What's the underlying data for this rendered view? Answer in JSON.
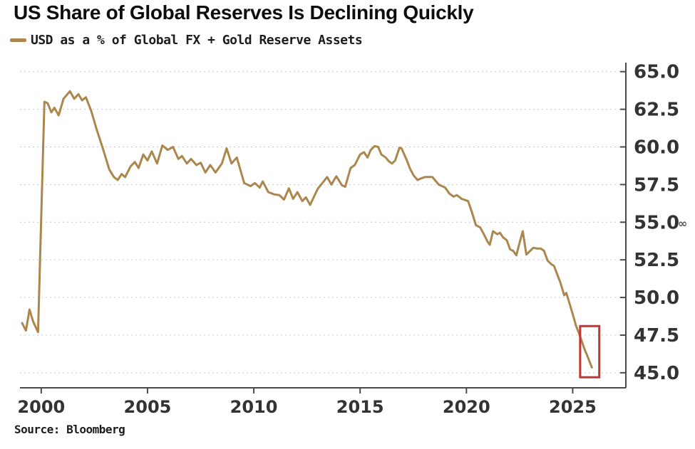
{
  "title": "US Share of Global Reserves Is Declining Quickly",
  "legend": {
    "label": "USD as a % of Global FX + Gold Reserve Assets"
  },
  "source": "Source: Bloomberg",
  "chart_data": {
    "type": "line",
    "title": "US Share of Global Reserves Is Declining Quickly",
    "xlabel": "",
    "ylabel": "",
    "xlim": [
      1999.0,
      2027.5
    ],
    "ylim": [
      44.0,
      65.6
    ],
    "x_ticks": [
      2000,
      2005,
      2010,
      2015,
      2020,
      2025
    ],
    "y_ticks": [
      65.0,
      62.5,
      60.0,
      57.5,
      55.0,
      52.5,
      50.0,
      47.5,
      45.0
    ],
    "grid": true,
    "legend_position": "top-left",
    "series": [
      {
        "name": "USD as a % of Global FX + Gold Reserve Assets",
        "points": [
          [
            1999.1,
            48.3
          ],
          [
            1999.28,
            47.8
          ],
          [
            1999.45,
            49.2
          ],
          [
            1999.62,
            48.4
          ],
          [
            1999.85,
            47.7
          ],
          [
            2000.15,
            63.0
          ],
          [
            2000.3,
            62.9
          ],
          [
            2000.48,
            62.3
          ],
          [
            2000.62,
            62.6
          ],
          [
            2000.82,
            62.1
          ],
          [
            2001.05,
            63.2
          ],
          [
            2001.35,
            63.7
          ],
          [
            2001.55,
            63.2
          ],
          [
            2001.75,
            63.5
          ],
          [
            2001.92,
            63.1
          ],
          [
            2002.1,
            63.3
          ],
          [
            2002.35,
            62.4
          ],
          [
            2002.62,
            61.1
          ],
          [
            2002.9,
            59.9
          ],
          [
            2003.2,
            58.5
          ],
          [
            2003.42,
            58.0
          ],
          [
            2003.6,
            57.8
          ],
          [
            2003.78,
            58.2
          ],
          [
            2003.95,
            58.0
          ],
          [
            2004.2,
            58.7
          ],
          [
            2004.4,
            59.0
          ],
          [
            2004.58,
            58.6
          ],
          [
            2004.8,
            59.5
          ],
          [
            2005.0,
            59.1
          ],
          [
            2005.2,
            59.7
          ],
          [
            2005.45,
            58.9
          ],
          [
            2005.7,
            60.1
          ],
          [
            2005.95,
            59.8
          ],
          [
            2006.2,
            60.0
          ],
          [
            2006.45,
            59.2
          ],
          [
            2006.62,
            59.4
          ],
          [
            2006.85,
            58.9
          ],
          [
            2007.05,
            59.2
          ],
          [
            2007.3,
            58.8
          ],
          [
            2007.5,
            58.95
          ],
          [
            2007.72,
            58.3
          ],
          [
            2007.95,
            58.8
          ],
          [
            2008.2,
            58.3
          ],
          [
            2008.5,
            58.9
          ],
          [
            2008.72,
            59.9
          ],
          [
            2008.95,
            58.9
          ],
          [
            2009.2,
            59.3
          ],
          [
            2009.55,
            57.6
          ],
          [
            2009.85,
            57.4
          ],
          [
            2010.05,
            57.6
          ],
          [
            2010.28,
            57.3
          ],
          [
            2010.42,
            57.7
          ],
          [
            2010.68,
            57.0
          ],
          [
            2010.95,
            56.85
          ],
          [
            2011.2,
            56.8
          ],
          [
            2011.42,
            56.5
          ],
          [
            2011.65,
            57.25
          ],
          [
            2011.85,
            56.55
          ],
          [
            2012.05,
            57.0
          ],
          [
            2012.28,
            56.4
          ],
          [
            2012.45,
            56.65
          ],
          [
            2012.65,
            56.15
          ],
          [
            2013.0,
            57.2
          ],
          [
            2013.45,
            58.0
          ],
          [
            2013.65,
            57.5
          ],
          [
            2013.88,
            58.05
          ],
          [
            2014.15,
            57.45
          ],
          [
            2014.3,
            57.35
          ],
          [
            2014.55,
            58.6
          ],
          [
            2014.75,
            58.8
          ],
          [
            2015.0,
            59.5
          ],
          [
            2015.18,
            59.65
          ],
          [
            2015.35,
            59.3
          ],
          [
            2015.5,
            59.8
          ],
          [
            2015.68,
            60.05
          ],
          [
            2015.85,
            60.0
          ],
          [
            2016.0,
            59.5
          ],
          [
            2016.2,
            59.3
          ],
          [
            2016.35,
            59.05
          ],
          [
            2016.5,
            58.9
          ],
          [
            2016.65,
            59.1
          ],
          [
            2016.85,
            59.95
          ],
          [
            2016.95,
            59.9
          ],
          [
            2017.2,
            59.1
          ],
          [
            2017.35,
            58.55
          ],
          [
            2017.52,
            58.1
          ],
          [
            2017.7,
            57.8
          ],
          [
            2017.85,
            57.9
          ],
          [
            2018.05,
            58.0
          ],
          [
            2018.4,
            58.0
          ],
          [
            2018.7,
            57.5
          ],
          [
            2019.0,
            57.3
          ],
          [
            2019.2,
            56.9
          ],
          [
            2019.4,
            56.7
          ],
          [
            2019.55,
            56.8
          ],
          [
            2019.78,
            56.55
          ],
          [
            2020.08,
            56.4
          ],
          [
            2020.25,
            55.7
          ],
          [
            2020.45,
            54.8
          ],
          [
            2020.65,
            54.65
          ],
          [
            2020.82,
            54.2
          ],
          [
            2021.0,
            53.7
          ],
          [
            2021.1,
            53.5
          ],
          [
            2021.25,
            54.4
          ],
          [
            2021.45,
            54.2
          ],
          [
            2021.58,
            54.3
          ],
          [
            2021.72,
            54.0
          ],
          [
            2021.9,
            53.8
          ],
          [
            2022.05,
            53.2
          ],
          [
            2022.2,
            53.1
          ],
          [
            2022.35,
            52.8
          ],
          [
            2022.55,
            53.9
          ],
          [
            2022.65,
            54.4
          ],
          [
            2022.82,
            52.85
          ],
          [
            2023.0,
            53.1
          ],
          [
            2023.15,
            53.3
          ],
          [
            2023.32,
            53.25
          ],
          [
            2023.5,
            53.25
          ],
          [
            2023.65,
            53.1
          ],
          [
            2023.82,
            52.45
          ],
          [
            2024.0,
            52.2
          ],
          [
            2024.12,
            52.1
          ],
          [
            2024.28,
            51.5
          ],
          [
            2024.42,
            51.0
          ],
          [
            2024.6,
            50.15
          ],
          [
            2024.7,
            50.3
          ],
          [
            2024.85,
            49.6
          ],
          [
            2025.0,
            48.9
          ],
          [
            2025.15,
            48.15
          ],
          [
            2025.35,
            47.4
          ],
          [
            2025.55,
            46.6
          ],
          [
            2025.75,
            45.9
          ],
          [
            2025.9,
            45.35
          ]
        ]
      }
    ],
    "annotations": {
      "highlight_box": {
        "x0": 2025.35,
        "x1": 2026.25,
        "y0": 44.7,
        "y1": 48.1
      },
      "axis_marker": {
        "at_tick": 55.0,
        "glyph": "∞"
      }
    },
    "colors": {
      "line": "#AB874E",
      "highlight_box": "#C23535",
      "axis": "#4A4A4A",
      "grid": "#CBCBCB",
      "tick_label": "#333333",
      "marker_icon": "#555555"
    }
  }
}
